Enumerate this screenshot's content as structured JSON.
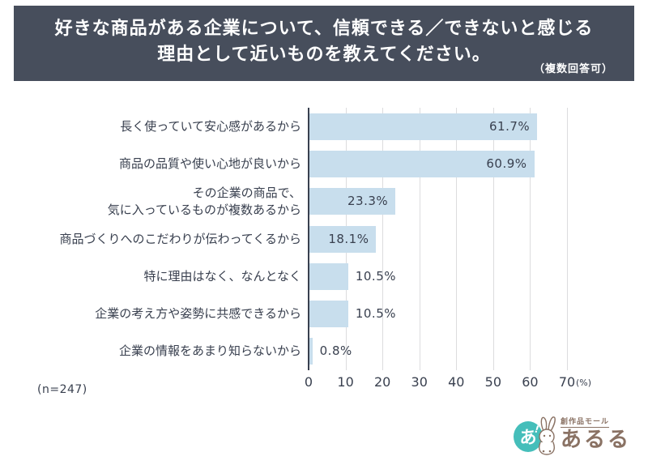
{
  "header": {
    "title_line1": "好きな商品がある企業について、信頼できる／できないと感じる",
    "title_line2": "理由として近いものを教えてください。",
    "note": "（複数回答可）",
    "background_color": "#474E5C",
    "text_color": "#ffffff"
  },
  "chart_data": {
    "type": "bar",
    "orientation": "horizontal",
    "title": "好きな商品がある企業について、信頼できる／できないと感じる理由として近いものを教えてください。（複数回答可）",
    "categories": [
      "長く使っていて安心感があるから",
      "商品の品質や使い心地が良いから",
      "その企業の商品で、\n気に入っているものが複数あるから",
      "商品づくりへのこだわりが伝わってくるから",
      "特に理由はなく、なんとなく",
      "企業の考え方や姿勢に共感できるから",
      "企業の情報をあまり知らないから"
    ],
    "values": [
      61.7,
      60.9,
      23.3,
      18.1,
      10.5,
      10.5,
      0.8
    ],
    "value_labels": [
      "61.7%",
      "60.9%",
      "23.3%",
      "18.1%",
      "10.5%",
      "10.5%",
      "0.8%"
    ],
    "xlabel": "(%)",
    "xticks": [
      0,
      10,
      20,
      30,
      40,
      50,
      60,
      70
    ],
    "xlim": [
      0,
      70
    ],
    "grid": true,
    "legend": "none",
    "sample_note": "(n=247)",
    "bar_color": "#C8DEED",
    "grid_color": "#dcdcde",
    "axis_color": "#39404F",
    "text_color": "#39404F",
    "inside_label_threshold": 15
  },
  "logo": {
    "mark_text": "あ",
    "mark_spark": "!",
    "tagline": "創作品モール",
    "brand": "あるる",
    "teal_color": "#45BEBA",
    "brown_color": "#8A7264"
  }
}
